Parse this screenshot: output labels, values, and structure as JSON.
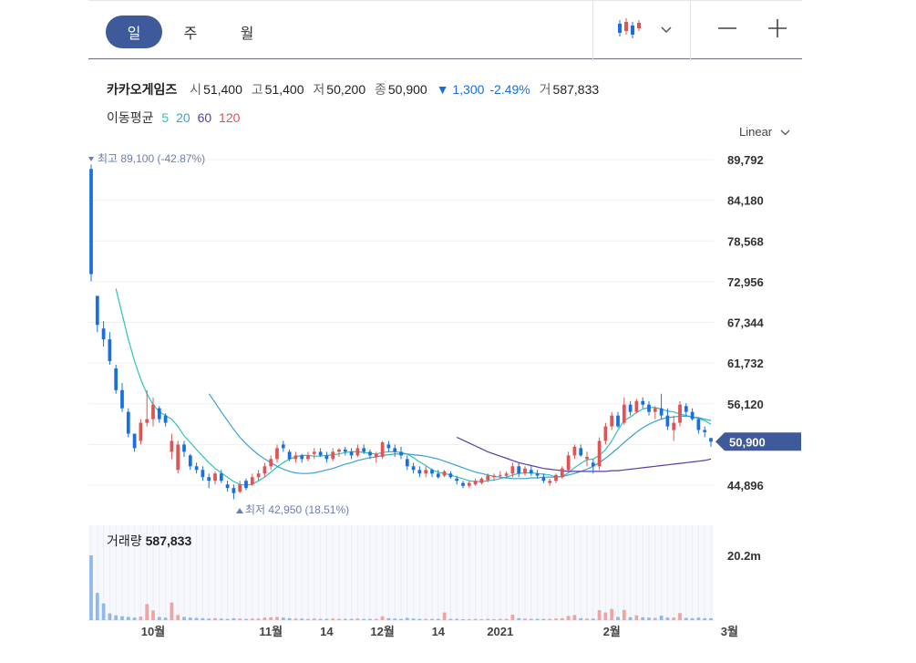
{
  "toolbar": {
    "period_tabs": [
      "일",
      "주",
      "월"
    ],
    "active_period": "일",
    "chart_type_icon": "candlestick-icon",
    "zoom_out_icon": "minus-icon",
    "zoom_in_icon": "plus-icon"
  },
  "info": {
    "name": "카카오게임즈",
    "open_label": "시",
    "open": "51,400",
    "high_label": "고",
    "high": "51,400",
    "low_label": "저",
    "low": "50,200",
    "close_label": "종",
    "close": "50,900",
    "change": "▼ 1,300",
    "change_pct": "-2.49%",
    "volume_label": "거",
    "volume": "587,833"
  },
  "ma": {
    "label": "이동평균",
    "p5": "5",
    "p20": "20",
    "p60": "60",
    "p120": "120"
  },
  "scale": {
    "label": "Linear"
  },
  "volume_panel": {
    "label": "거래량",
    "value": "587,833",
    "max_tick": "20.2m"
  },
  "colors": {
    "up": "#e05454",
    "down": "#1a6fe0",
    "ma5": "#2ec4b6",
    "ma20": "#3a9fd6",
    "ma60": "#5a3aa8",
    "accent": "#3f5a9a"
  },
  "chart_data": {
    "type": "candlestick",
    "y_axis_ticks": [
      "89,792",
      "84,180",
      "78,568",
      "72,956",
      "67,344",
      "61,732",
      "56,120",
      "44,896"
    ],
    "y_range": [
      39284,
      91000
    ],
    "current_price_label": "50,900",
    "current_price": 50900,
    "high_marker": "최고 89,100 (-42.87%)",
    "low_marker": "최저 42,950 (18.51%)",
    "x_tick_labels": [
      "10월",
      "11월",
      "14",
      "12월",
      "14",
      "2021",
      "2월",
      "3월"
    ],
    "x_tick_index": [
      10,
      29,
      38,
      47,
      56,
      66,
      84,
      103
    ],
    "candles": [
      [
        88500,
        89100,
        73000,
        74000
      ],
      [
        71000,
        71000,
        66000,
        67000
      ],
      [
        66500,
        67500,
        64000,
        65000
      ],
      [
        65000,
        66000,
        61500,
        62000
      ],
      [
        61000,
        61500,
        57500,
        58000
      ],
      [
        58000,
        59000,
        55000,
        55500
      ],
      [
        55000,
        55500,
        51500,
        52000
      ],
      [
        52000,
        52000,
        49500,
        50000
      ],
      [
        51000,
        54000,
        50500,
        53500
      ],
      [
        53500,
        58000,
        53000,
        54000
      ],
      [
        54000,
        57000,
        53000,
        56000
      ],
      [
        55500,
        55800,
        53500,
        54000
      ],
      [
        54500,
        54800,
        53000,
        53500
      ],
      [
        49500,
        52000,
        48500,
        51000
      ],
      [
        47000,
        51000,
        46500,
        50500
      ],
      [
        50500,
        51000,
        48800,
        49500
      ],
      [
        49000,
        49200,
        47000,
        47500
      ],
      [
        47500,
        48000,
        46500,
        47000
      ],
      [
        47000,
        47500,
        45500,
        46000
      ],
      [
        46000,
        46500,
        44500,
        45500
      ],
      [
        45500,
        46800,
        45000,
        46500
      ],
      [
        46500,
        47000,
        45200,
        45500
      ],
      [
        45000,
        45500,
        44000,
        44500
      ],
      [
        44500,
        45000,
        42950,
        43800
      ],
      [
        44000,
        45500,
        43800,
        45000
      ],
      [
        45500,
        45800,
        44200,
        44500
      ],
      [
        45000,
        46500,
        44800,
        46000
      ],
      [
        46000,
        47000,
        45500,
        46500
      ],
      [
        46500,
        48000,
        46000,
        47500
      ],
      [
        47500,
        49000,
        47000,
        48500
      ],
      [
        48500,
        50500,
        48000,
        50000
      ],
      [
        50500,
        51000,
        49500,
        50000
      ],
      [
        49500,
        49800,
        48200,
        48500
      ],
      [
        48500,
        49500,
        48000,
        49000
      ],
      [
        49000,
        49200,
        48000,
        48500
      ],
      [
        48500,
        49500,
        48200,
        49000
      ],
      [
        49200,
        50000,
        48500,
        49500
      ],
      [
        49500,
        50000,
        48800,
        49000
      ],
      [
        49000,
        49500,
        48000,
        48500
      ],
      [
        48500,
        50000,
        48200,
        49500
      ],
      [
        49500,
        50000,
        48800,
        49800
      ],
      [
        49800,
        50200,
        49000,
        49500
      ],
      [
        49500,
        50000,
        48500,
        49000
      ],
      [
        49000,
        50500,
        48800,
        50000
      ],
      [
        50000,
        50500,
        49200,
        49500
      ],
      [
        49500,
        49800,
        48500,
        49000
      ],
      [
        48800,
        49500,
        48000,
        49200
      ],
      [
        48800,
        51000,
        48500,
        50800
      ],
      [
        50500,
        51000,
        49500,
        50000
      ],
      [
        50000,
        50500,
        48800,
        49500
      ],
      [
        49500,
        50200,
        48500,
        49000
      ],
      [
        48500,
        49000,
        47000,
        47500
      ],
      [
        47500,
        48000,
        46500,
        47000
      ],
      [
        47000,
        47500,
        46000,
        46500
      ],
      [
        46500,
        47500,
        46000,
        47000
      ],
      [
        47000,
        47200,
        46000,
        46500
      ],
      [
        46500,
        47000,
        45800,
        46000
      ],
      [
        46200,
        47000,
        46000,
        46800
      ],
      [
        46500,
        46800,
        45800,
        46000
      ],
      [
        45800,
        46200,
        45000,
        45500
      ],
      [
        45200,
        45500,
        44500,
        44800
      ],
      [
        44800,
        45500,
        44500,
        45200
      ],
      [
        45000,
        45800,
        44800,
        45500
      ],
      [
        45200,
        46000,
        45000,
        45800
      ],
      [
        45600,
        46500,
        45300,
        46200
      ],
      [
        46000,
        46500,
        45500,
        46200
      ],
      [
        46200,
        46800,
        45800,
        46300
      ],
      [
        46200,
        46800,
        45800,
        46500
      ],
      [
        46500,
        48000,
        46000,
        47500
      ],
      [
        47500,
        48000,
        46000,
        46500
      ],
      [
        46500,
        47500,
        46200,
        47200
      ],
      [
        47000,
        47500,
        46200,
        46500
      ],
      [
        46500,
        47000,
        45800,
        46200
      ],
      [
        46000,
        46500,
        45200,
        45500
      ],
      [
        45200,
        45800,
        44800,
        45500
      ],
      [
        45500,
        46500,
        45200,
        46300
      ],
      [
        46000,
        47500,
        45800,
        47200
      ],
      [
        47000,
        49500,
        46800,
        49000
      ],
      [
        49000,
        50500,
        48500,
        50200
      ],
      [
        50000,
        50500,
        48800,
        49000
      ],
      [
        48500,
        49500,
        47500,
        48800
      ],
      [
        48000,
        48500,
        46500,
        47500
      ],
      [
        47500,
        51500,
        47000,
        51000
      ],
      [
        51000,
        53500,
        50500,
        53000
      ],
      [
        53000,
        55000,
        52500,
        54500
      ],
      [
        54500,
        55000,
        52800,
        53000
      ],
      [
        53500,
        57000,
        53200,
        56000
      ],
      [
        56000,
        56500,
        54500,
        55000
      ],
      [
        55000,
        56800,
        54800,
        56500
      ],
      [
        56500,
        57000,
        55500,
        56000
      ],
      [
        56000,
        56500,
        54500,
        55000
      ],
      [
        55000,
        55800,
        54000,
        55500
      ],
      [
        55500,
        57500,
        54000,
        54500
      ],
      [
        54500,
        55500,
        52500,
        53000
      ],
      [
        52500,
        54500,
        51000,
        53500
      ],
      [
        53500,
        56500,
        53000,
        56000
      ],
      [
        55800,
        56200,
        54500,
        55000
      ],
      [
        55000,
        55500,
        53800,
        54000
      ],
      [
        54000,
        54200,
        52000,
        52500
      ],
      [
        52500,
        53000,
        51500,
        52200
      ],
      [
        51400,
        51400,
        50200,
        50900
      ]
    ],
    "volume_max": 20.2,
    "volume_unit": "m",
    "volume": [
      20.2,
      8.5,
      5.2,
      2.1,
      1.5,
      1.2,
      1.0,
      0.8,
      1.1,
      5.0,
      3.0,
      1.0,
      0.8,
      5.5,
      1.6,
      1.0,
      0.8,
      0.7,
      0.6,
      0.5,
      0.6,
      0.5,
      0.4,
      0.6,
      0.5,
      0.4,
      0.5,
      0.5,
      0.8,
      0.9,
      1.0,
      0.8,
      0.6,
      0.5,
      0.5,
      0.4,
      0.5,
      0.4,
      0.4,
      0.5,
      0.4,
      0.4,
      0.4,
      0.5,
      0.4,
      0.4,
      0.4,
      1.2,
      0.6,
      0.5,
      0.4,
      0.7,
      0.5,
      0.4,
      0.4,
      0.4,
      0.4,
      2.4,
      0.4,
      0.4,
      0.3,
      0.3,
      0.4,
      0.3,
      0.4,
      0.3,
      0.4,
      0.4,
      1.7,
      0.6,
      0.5,
      0.4,
      0.4,
      0.4,
      0.4,
      0.5,
      0.6,
      1.3,
      1.6,
      0.6,
      0.5,
      0.5,
      3.1,
      2.4,
      3.5,
      1.0,
      3.2,
      0.9,
      1.5,
      0.9,
      0.8,
      0.7,
      1.4,
      0.8,
      0.8,
      2.2,
      0.7,
      0.6,
      0.8,
      0.6,
      0.6
    ],
    "ma5": [
      null,
      null,
      null,
      null,
      72000,
      68500,
      65000,
      62000,
      59500,
      57500,
      56000,
      55000,
      54500,
      54000,
      53000,
      51700,
      50800,
      49800,
      48900,
      48000,
      47200,
      46600,
      46000,
      45400,
      45000,
      44900,
      45000,
      45500,
      46000,
      46700,
      47400,
      48000,
      48500,
      48800,
      49000,
      49000,
      48900,
      48900,
      49000,
      49100,
      49200,
      49400,
      49500,
      49500,
      49400,
      49300,
      49200,
      49400,
      49500,
      49500,
      49400,
      49200,
      48700,
      48100,
      47600,
      47000,
      46700,
      46500,
      46300,
      46000,
      45800,
      45500,
      45400,
      45400,
      45500,
      45600,
      45800,
      46000,
      46300,
      46500,
      46600,
      46600,
      46500,
      46400,
      46300,
      46000,
      46100,
      46600,
      47300,
      47900,
      48400,
      48500,
      49000,
      49800,
      51000,
      52500,
      53800,
      54300,
      54900,
      55400,
      55600,
      55600,
      55400,
      55100,
      55000,
      54700,
      54500,
      54300,
      54100,
      53800,
      53300
    ],
    "ma20": [
      null,
      null,
      null,
      null,
      null,
      null,
      null,
      null,
      null,
      null,
      null,
      null,
      null,
      null,
      null,
      null,
      null,
      null,
      null,
      57500,
      56300,
      55000,
      53800,
      52600,
      51500,
      50600,
      49800,
      49100,
      48500,
      48000,
      47500,
      47100,
      46800,
      46600,
      46500,
      46500,
      46600,
      46800,
      47000,
      47200,
      47500,
      47800,
      48000,
      48300,
      48500,
      48700,
      48800,
      49000,
      49100,
      49200,
      49200,
      49200,
      49100,
      49000,
      48900,
      48700,
      48500,
      48200,
      47900,
      47600,
      47300,
      47000,
      46700,
      46500,
      46300,
      46100,
      46000,
      45900,
      45800,
      45800,
      45800,
      45900,
      45900,
      46000,
      46000,
      46000,
      46100,
      46300,
      46500,
      46800,
      47100,
      47500,
      48000,
      48600,
      49300,
      50000,
      50800,
      51500,
      52200,
      52800,
      53300,
      53700,
      54000,
      54200,
      54300,
      54400,
      54400,
      54300,
      54200,
      54000,
      53800
    ],
    "ma60": [
      null,
      null,
      null,
      null,
      null,
      null,
      null,
      null,
      null,
      null,
      null,
      null,
      null,
      null,
      null,
      null,
      null,
      null,
      null,
      null,
      null,
      null,
      null,
      null,
      null,
      null,
      null,
      null,
      null,
      null,
      null,
      null,
      null,
      null,
      null,
      null,
      null,
      null,
      null,
      null,
      null,
      null,
      null,
      null,
      null,
      null,
      null,
      null,
      null,
      null,
      null,
      null,
      null,
      null,
      null,
      null,
      null,
      null,
      null,
      51500,
      51100,
      50700,
      50300,
      49900,
      49500,
      49200,
      48900,
      48600,
      48300,
      48000,
      47800,
      47600,
      47400,
      47200,
      47100,
      47000,
      46900,
      46800,
      46800,
      46800,
      46800,
      46800,
      46800,
      46800,
      46900,
      46900,
      47000,
      47100,
      47200,
      47300,
      47400,
      47500,
      47600,
      47700,
      47800,
      47900,
      48000,
      48100,
      48200,
      48300,
      48500
    ]
  }
}
